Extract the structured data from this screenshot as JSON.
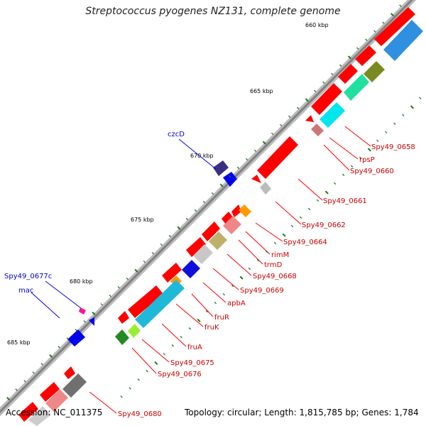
{
  "title": "Streptococcus pyogenes NZ131, complete genome",
  "footer": {
    "accession": "Accession: NC_011375",
    "topology": "Topology: circular; Length: 1,815,785 bp; Genes: 1,784"
  },
  "colors": {
    "backbone": "#999999",
    "gene_fwd": "#ff0000",
    "tick": "#1a7a1a",
    "label_red": "#cc0000",
    "label_blue": "#0000cc"
  },
  "scale_labels": [
    "660 kbp",
    "665 kbp",
    "670 kbp",
    "675 kbp",
    "680 kbp",
    "685 kbp"
  ],
  "gene_labels": [
    {
      "name": "Spy49_0658",
      "color": "red"
    },
    {
      "name": "rpsP",
      "color": "red"
    },
    {
      "name": "Spy49_0660",
      "color": "red"
    },
    {
      "name": "Spy49_0661",
      "color": "red"
    },
    {
      "name": "Spy49_0662",
      "color": "red"
    },
    {
      "name": "Spy49_0664",
      "color": "red"
    },
    {
      "name": "rimM",
      "color": "red"
    },
    {
      "name": "trmD",
      "color": "red"
    },
    {
      "name": "Spy49_0668",
      "color": "red"
    },
    {
      "name": "Spy49_0669",
      "color": "red"
    },
    {
      "name": "apbA",
      "color": "red"
    },
    {
      "name": "fruR",
      "color": "red"
    },
    {
      "name": "fruK",
      "color": "red"
    },
    {
      "name": "fruA",
      "color": "red"
    },
    {
      "name": "Spy49_0675",
      "color": "red"
    },
    {
      "name": "Spy49_0676",
      "color": "red"
    },
    {
      "name": "Spy49_0680",
      "color": "red"
    },
    {
      "name": "czcD",
      "color": "blue"
    },
    {
      "name": "Spy49_0677c",
      "color": "blue"
    },
    {
      "name": "mac",
      "color": "blue"
    }
  ]
}
